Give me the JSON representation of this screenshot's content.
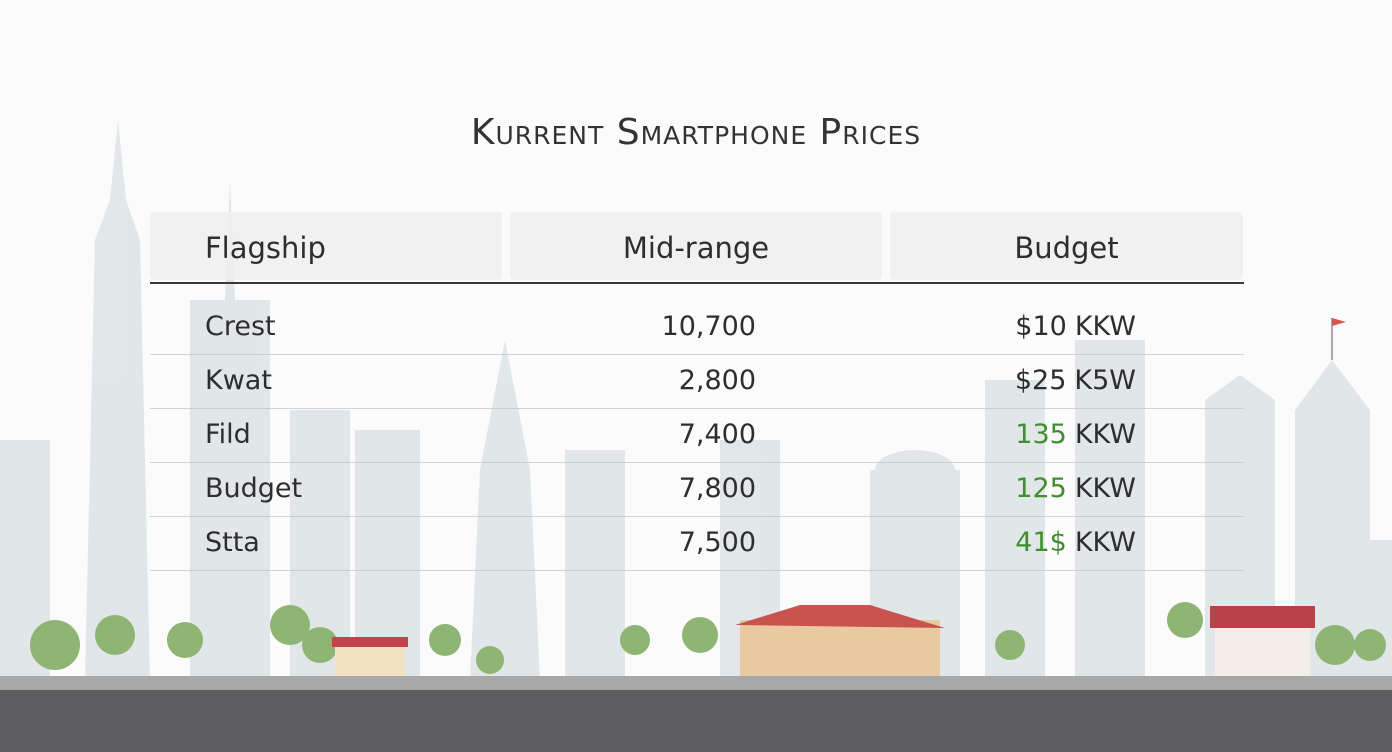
{
  "title": "Kurrent Smartphone Prices",
  "table": {
    "headers": [
      "Flagship",
      "Mid-range",
      "Budget"
    ],
    "rows": [
      {
        "name": "Crest",
        "mid": "10,700",
        "budget": {
          "amount": "$10",
          "unit": "KKW",
          "amount_color": "#2e2e2e"
        }
      },
      {
        "name": "Kwat",
        "mid": "2,800",
        "budget": {
          "amount": "$25",
          "unit": "K5W",
          "amount_color": "#2e2e2e"
        }
      },
      {
        "name": "Fild",
        "mid": "7,400",
        "budget": {
          "amount": "135",
          "unit": "KKW",
          "amount_color": "#3f8f2f"
        }
      },
      {
        "name": "Budget",
        "mid": "7,800",
        "budget": {
          "amount": "125",
          "unit": "KKW",
          "amount_color": "#3f8f2f"
        }
      },
      {
        "name": "Stta",
        "mid": "7,500",
        "budget": {
          "amount": "41$",
          "unit": "KKW",
          "amount_color": "#3f8f2f"
        }
      }
    ]
  }
}
